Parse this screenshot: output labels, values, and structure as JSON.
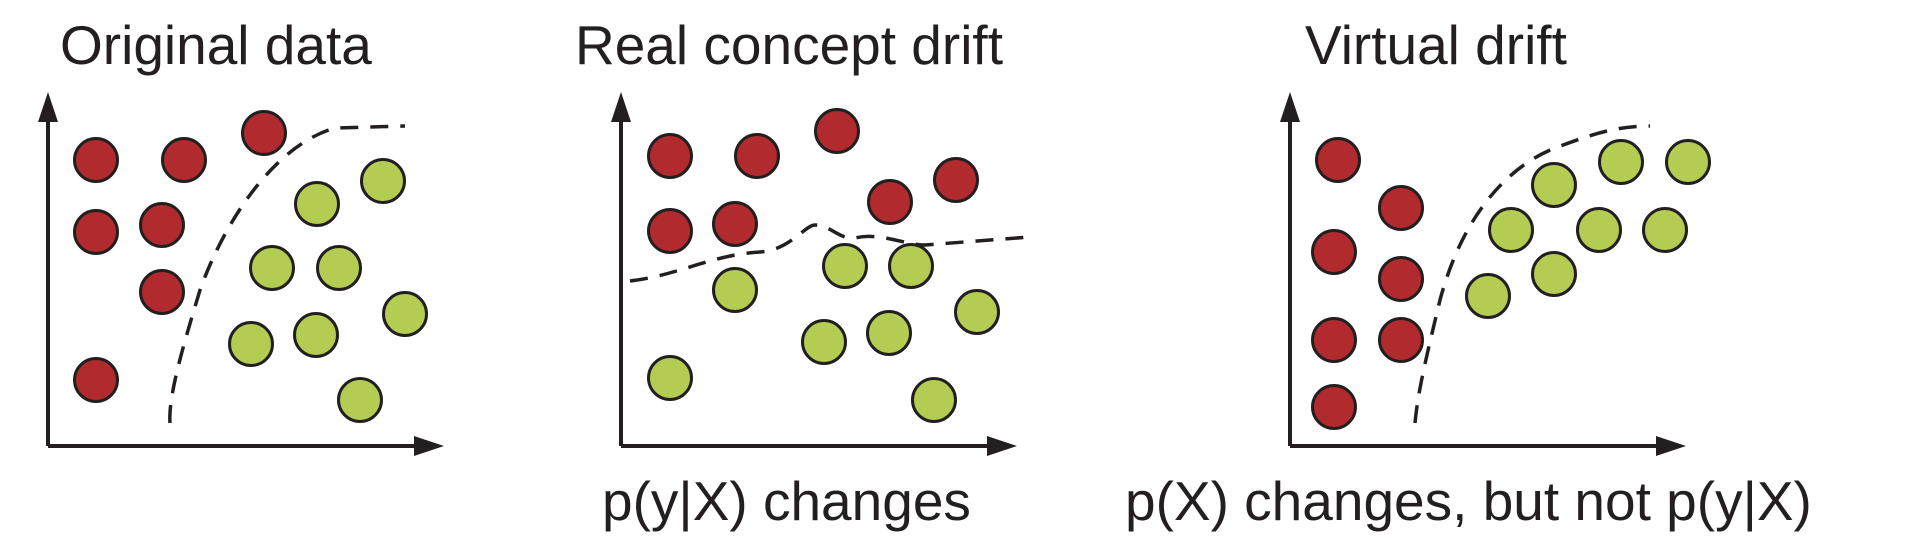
{
  "colors": {
    "class_a": "#b12a2d",
    "class_b": "#b4cc52",
    "ink": "#231f20"
  },
  "panels": [
    {
      "title": "Original data",
      "caption": "",
      "points": [
        {
          "c": "a"
        },
        {
          "c": "a"
        },
        {
          "c": "a"
        },
        {
          "c": "a"
        },
        {
          "c": "a"
        },
        {
          "c": "a"
        },
        {
          "c": "a"
        },
        {
          "c": "b"
        },
        {
          "c": "b"
        },
        {
          "c": "b"
        },
        {
          "c": "b"
        },
        {
          "c": "b"
        },
        {
          "c": "b"
        },
        {
          "c": "b"
        },
        {
          "c": "b"
        }
      ]
    },
    {
      "title": "Real concept drift",
      "caption": "p(y|X) changes",
      "points": [
        {
          "c": "a"
        },
        {
          "c": "a"
        },
        {
          "c": "a"
        },
        {
          "c": "a"
        },
        {
          "c": "a"
        },
        {
          "c": "a"
        },
        {
          "c": "a"
        },
        {
          "c": "b"
        },
        {
          "c": "b"
        },
        {
          "c": "b"
        },
        {
          "c": "b"
        },
        {
          "c": "b"
        },
        {
          "c": "b"
        },
        {
          "c": "b"
        },
        {
          "c": "b"
        }
      ]
    },
    {
      "title": "Virtual drift",
      "caption": "p(X) changes, but not p(y|X)",
      "points": [
        {
          "c": "a"
        },
        {
          "c": "a"
        },
        {
          "c": "a"
        },
        {
          "c": "a"
        },
        {
          "c": "a"
        },
        {
          "c": "a"
        },
        {
          "c": "a"
        },
        {
          "c": "b"
        },
        {
          "c": "b"
        },
        {
          "c": "b"
        },
        {
          "c": "b"
        },
        {
          "c": "b"
        },
        {
          "c": "b"
        },
        {
          "c": "b"
        },
        {
          "c": "b"
        }
      ]
    }
  ]
}
